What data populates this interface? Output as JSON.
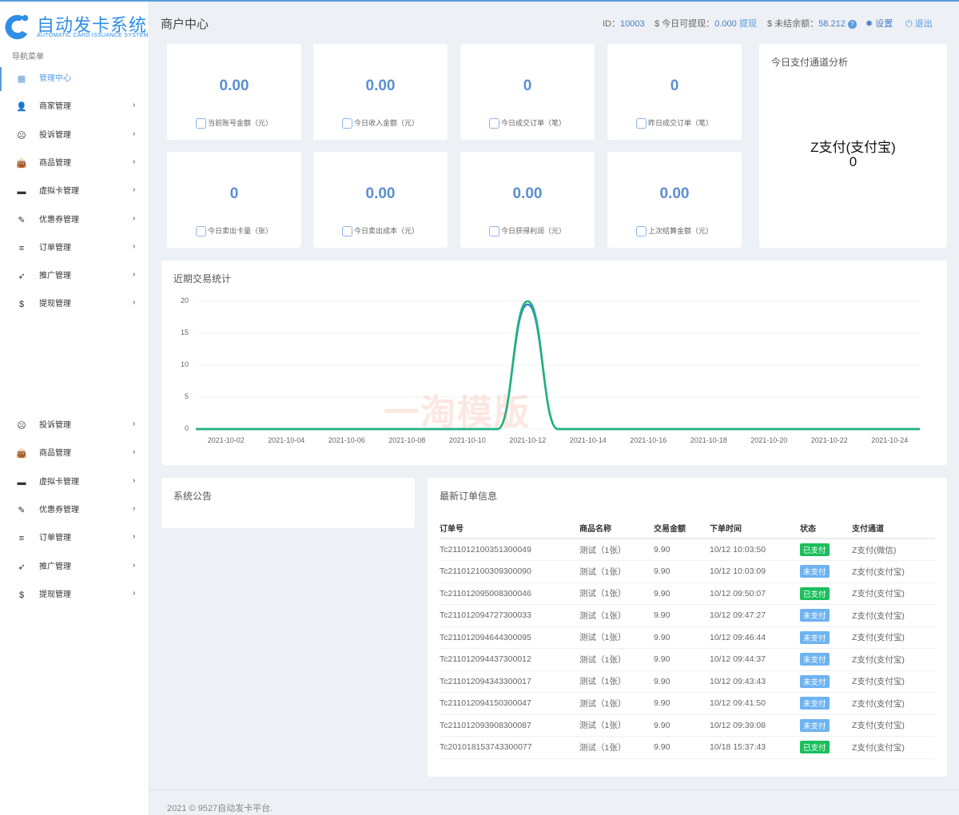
{
  "app": {
    "name": "自动发卡系统",
    "subtitle": "AUTOMATIC CARD ISSUANCE SYSTEM",
    "watermark": "一淘模版"
  },
  "sidebar": {
    "heading": "导航菜单",
    "items": [
      {
        "label": "管理中心",
        "icon": "dashboard-icon",
        "glyph": "▦",
        "active": true
      },
      {
        "label": "商家管理",
        "icon": "user-icon",
        "glyph": "👤"
      },
      {
        "label": "投诉管理",
        "icon": "frown-icon",
        "glyph": "☹"
      },
      {
        "label": "商品管理",
        "icon": "shopping-bag-icon",
        "glyph": "👜"
      },
      {
        "label": "虚拟卡管理",
        "icon": "credit-card-icon",
        "glyph": "▬"
      },
      {
        "label": "优惠券管理",
        "icon": "ticket-icon",
        "glyph": "✎"
      },
      {
        "label": "订单管理",
        "icon": "list-icon",
        "glyph": "≡"
      },
      {
        "label": "推广管理",
        "icon": "paper-plane-icon",
        "glyph": "➶"
      },
      {
        "label": "提现管理",
        "icon": "dollar-icon",
        "glyph": "$"
      }
    ],
    "items2": [
      {
        "label": "投诉管理",
        "icon": "frown-icon",
        "glyph": "☹"
      },
      {
        "label": "商品管理",
        "icon": "shopping-bag-icon",
        "glyph": "👜"
      },
      {
        "label": "虚拟卡管理",
        "icon": "credit-card-icon",
        "glyph": "▬"
      },
      {
        "label": "优惠券管理",
        "icon": "ticket-icon",
        "glyph": "✎"
      },
      {
        "label": "订单管理",
        "icon": "list-icon",
        "glyph": "≡"
      },
      {
        "label": "推广管理",
        "icon": "paper-plane-icon",
        "glyph": "➶"
      },
      {
        "label": "提现管理",
        "icon": "dollar-icon",
        "glyph": "$"
      }
    ]
  },
  "header": {
    "title": "商户中心",
    "id_label": "ID：",
    "id_value": "10003",
    "withdrawable_label": "$ 今日可提现：",
    "withdrawable_value": "0.000",
    "withdraw_link": "提现",
    "unsettled_label": "$ 未结余额：",
    "unsettled_value": "58.212",
    "settings": "设置",
    "logout": "退出"
  },
  "stats": [
    {
      "value": "0.00",
      "label": "当前账号金额（元）"
    },
    {
      "value": "0.00",
      "label": "今日收入金额（元）"
    },
    {
      "value": "0",
      "label": "今日成交订单（笔）"
    },
    {
      "value": "0",
      "label": "昨日成交订单（笔）"
    },
    {
      "value": "0",
      "label": "今日卖出卡量（张）"
    },
    {
      "value": "0.00",
      "label": "今日卖出成本（元）"
    },
    {
      "value": "0.00",
      "label": "今日获得利润（元）"
    },
    {
      "value": "0.00",
      "label": "上次结算金额（元）"
    }
  ],
  "channel": {
    "title": "今日支付通道分析",
    "name": "Z支付(支付宝)",
    "value": "0"
  },
  "chart_data": {
    "type": "line",
    "title": "近期交易统计",
    "ylim": [
      0,
      20
    ],
    "yticks": [
      "0",
      "5",
      "10",
      "15",
      "20"
    ],
    "x": [
      "2021-10-01",
      "2021-10-02",
      "2021-10-03",
      "2021-10-04",
      "2021-10-05",
      "2021-10-06",
      "2021-10-07",
      "2021-10-08",
      "2021-10-09",
      "2021-10-10",
      "2021-10-11",
      "2021-10-12",
      "2021-10-13",
      "2021-10-14",
      "2021-10-15",
      "2021-10-16",
      "2021-10-17",
      "2021-10-18",
      "2021-10-19",
      "2021-10-20",
      "2021-10-21",
      "2021-10-22",
      "2021-10-23",
      "2021-10-24",
      "2021-10-25"
    ],
    "xticks": [
      "2021-10-02",
      "2021-10-04",
      "2021-10-06",
      "2021-10-08",
      "2021-10-10",
      "2021-10-12",
      "2021-10-14",
      "2021-10-16",
      "2021-10-18",
      "2021-10-20",
      "2021-10-22",
      "2021-10-24"
    ],
    "grid": true,
    "series": [
      {
        "color": "#3a7fd0",
        "values": [
          0,
          0,
          0,
          0,
          0,
          0,
          0,
          0,
          0,
          0,
          0,
          19.5,
          0,
          0,
          0,
          0,
          0,
          0,
          0,
          0,
          0,
          0,
          0,
          0,
          0
        ]
      },
      {
        "color": "#1db37a",
        "values": [
          0,
          0,
          0,
          0,
          0,
          0,
          0,
          0,
          0,
          0,
          0,
          20,
          0,
          0,
          0,
          0,
          0,
          0,
          0,
          0,
          0,
          0,
          0,
          0,
          0
        ]
      }
    ]
  },
  "notice": {
    "title": "系统公告"
  },
  "orders": {
    "title": "最新订单信息",
    "columns": [
      "订单号",
      "商品名称",
      "交易金额",
      "下单时间",
      "状态",
      "支付通道"
    ],
    "paid_color": "#1bbf5c",
    "unpaid_color": "#6db3f2",
    "rows": [
      {
        "id": "Tc211012100351300049",
        "product": "测试（1张）",
        "amount": "9.90",
        "time": "10/12 10:03:50",
        "status": "已支付",
        "paid": true,
        "channel": "Z支付(微信)"
      },
      {
        "id": "Tc211012100309300090",
        "product": "测试（1张）",
        "amount": "9.90",
        "time": "10/12 10:03:09",
        "status": "未支付",
        "paid": false,
        "channel": "Z支付(支付宝)"
      },
      {
        "id": "Tc211012095008300046",
        "product": "测试（1张）",
        "amount": "9.90",
        "time": "10/12 09:50:07",
        "status": "已支付",
        "paid": true,
        "channel": "Z支付(支付宝)"
      },
      {
        "id": "Tc211012094727300033",
        "product": "测试（1张）",
        "amount": "9.90",
        "time": "10/12 09:47:27",
        "status": "未支付",
        "paid": false,
        "channel": "Z支付(支付宝)"
      },
      {
        "id": "Tc211012094644300095",
        "product": "测试（1张）",
        "amount": "9.90",
        "time": "10/12 09:46:44",
        "status": "未支付",
        "paid": false,
        "channel": "Z支付(支付宝)"
      },
      {
        "id": "Tc211012094437300012",
        "product": "测试（1张）",
        "amount": "9.90",
        "time": "10/12 09:44:37",
        "status": "未支付",
        "paid": false,
        "channel": "Z支付(支付宝)"
      },
      {
        "id": "Tc211012094343300017",
        "product": "测试（1张）",
        "amount": "9.90",
        "time": "10/12 09:43:43",
        "status": "未支付",
        "paid": false,
        "channel": "Z支付(支付宝)"
      },
      {
        "id": "Tc211012094150300047",
        "product": "测试（1张）",
        "amount": "9.90",
        "time": "10/12 09:41:50",
        "status": "未支付",
        "paid": false,
        "channel": "Z支付(支付宝)"
      },
      {
        "id": "Tc211012093908300087",
        "product": "测试（1张）",
        "amount": "9.90",
        "time": "10/12 09:39:08",
        "status": "未支付",
        "paid": false,
        "channel": "Z支付(支付宝)"
      },
      {
        "id": "Tc201018153743300077",
        "product": "测试（1张）",
        "amount": "9.90",
        "time": "10/18 15:37:43",
        "status": "已支付",
        "paid": true,
        "channel": "Z支付(支付宝)"
      }
    ]
  },
  "footer": {
    "text": "2021 © 9527自动发卡平台."
  }
}
